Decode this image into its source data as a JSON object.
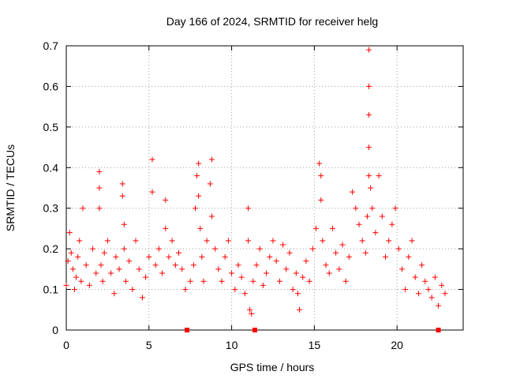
{
  "chart_data": {
    "type": "scatter",
    "title": "Day 166 of 2024, SRMTID for receiver helg",
    "xlabel": "GPS time / hours",
    "ylabel": "SRMTID / TECUs",
    "xlim": [
      0,
      24
    ],
    "ylim": [
      0,
      0.7
    ],
    "xticks": [
      0,
      5,
      10,
      15,
      20
    ],
    "xtick_labels": [
      "0",
      "5",
      "10",
      "15",
      "20"
    ],
    "yticks": [
      0,
      0.1,
      0.2,
      0.3,
      0.4,
      0.5,
      0.6,
      0.7
    ],
    "ytick_labels": [
      "0",
      "0.1",
      "0.2",
      "0.3",
      "0.4",
      "0.5",
      "0.6",
      "0.7"
    ],
    "grid": true,
    "marker": "plus",
    "color": "#ff0000",
    "baseline_markers_x": [
      7.3,
      11.4,
      22.5
    ],
    "series": [
      {
        "name": "SRMTID",
        "x": [
          0.0,
          0.1,
          0.2,
          0.3,
          0.4,
          0.5,
          0.6,
          0.7,
          0.8,
          0.9,
          1.0,
          1.2,
          1.4,
          1.6,
          1.8,
          2.0,
          2.0,
          2.0,
          2.1,
          2.2,
          2.3,
          2.5,
          2.7,
          2.9,
          3.0,
          3.2,
          3.4,
          3.4,
          3.5,
          3.5,
          3.6,
          3.8,
          4.0,
          4.2,
          4.4,
          4.6,
          4.8,
          5.0,
          5.2,
          5.2,
          5.4,
          5.6,
          5.8,
          6.0,
          6.0,
          6.2,
          6.4,
          6.6,
          6.8,
          7.0,
          7.2,
          7.5,
          7.7,
          7.8,
          7.9,
          8.0,
          8.0,
          8.1,
          8.2,
          8.3,
          8.5,
          8.7,
          8.8,
          8.8,
          9.0,
          9.2,
          9.4,
          9.6,
          9.8,
          10.0,
          10.2,
          10.4,
          10.6,
          10.8,
          11.0,
          11.0,
          11.1,
          11.2,
          11.3,
          11.5,
          11.7,
          11.9,
          12.1,
          12.3,
          12.5,
          12.7,
          12.9,
          13.1,
          13.3,
          13.5,
          13.7,
          13.9,
          14.0,
          14.1,
          14.3,
          14.5,
          14.7,
          14.9,
          15.1,
          15.3,
          15.4,
          15.4,
          15.5,
          15.7,
          15.9,
          16.1,
          16.3,
          16.5,
          16.7,
          16.9,
          17.1,
          17.3,
          17.5,
          17.7,
          17.9,
          18.1,
          18.2,
          18.3,
          18.3,
          18.3,
          18.3,
          18.3,
          18.4,
          18.5,
          18.7,
          18.9,
          19.1,
          19.3,
          19.5,
          19.7,
          19.9,
          20.1,
          20.3,
          20.5,
          20.7,
          20.9,
          21.1,
          21.3,
          21.5,
          21.7,
          21.9,
          22.1,
          22.3,
          22.5,
          22.7,
          22.9
        ],
        "y": [
          0.11,
          0.17,
          0.24,
          0.19,
          0.15,
          0.1,
          0.13,
          0.18,
          0.22,
          0.12,
          0.3,
          0.16,
          0.11,
          0.2,
          0.14,
          0.39,
          0.35,
          0.3,
          0.16,
          0.12,
          0.19,
          0.22,
          0.14,
          0.09,
          0.18,
          0.15,
          0.36,
          0.33,
          0.26,
          0.2,
          0.12,
          0.17,
          0.1,
          0.22,
          0.15,
          0.08,
          0.13,
          0.18,
          0.42,
          0.34,
          0.16,
          0.2,
          0.14,
          0.32,
          0.25,
          0.18,
          0.22,
          0.16,
          0.19,
          0.15,
          0.1,
          0.12,
          0.16,
          0.3,
          0.38,
          0.41,
          0.33,
          0.25,
          0.18,
          0.12,
          0.22,
          0.36,
          0.42,
          0.28,
          0.2,
          0.15,
          0.12,
          0.18,
          0.22,
          0.14,
          0.1,
          0.16,
          0.13,
          0.09,
          0.3,
          0.22,
          0.05,
          0.04,
          0.12,
          0.16,
          0.2,
          0.11,
          0.14,
          0.18,
          0.22,
          0.17,
          0.12,
          0.21,
          0.15,
          0.19,
          0.1,
          0.14,
          0.09,
          0.05,
          0.13,
          0.17,
          0.12,
          0.2,
          0.25,
          0.41,
          0.38,
          0.32,
          0.22,
          0.16,
          0.14,
          0.25,
          0.19,
          0.15,
          0.21,
          0.12,
          0.18,
          0.34,
          0.3,
          0.26,
          0.22,
          0.19,
          0.28,
          0.69,
          0.6,
          0.53,
          0.45,
          0.38,
          0.35,
          0.3,
          0.24,
          0.38,
          0.28,
          0.18,
          0.22,
          0.26,
          0.3,
          0.2,
          0.15,
          0.1,
          0.18,
          0.22,
          0.13,
          0.09,
          0.16,
          0.12,
          0.1,
          0.08,
          0.13,
          0.06,
          0.11,
          0.09
        ]
      }
    ]
  }
}
